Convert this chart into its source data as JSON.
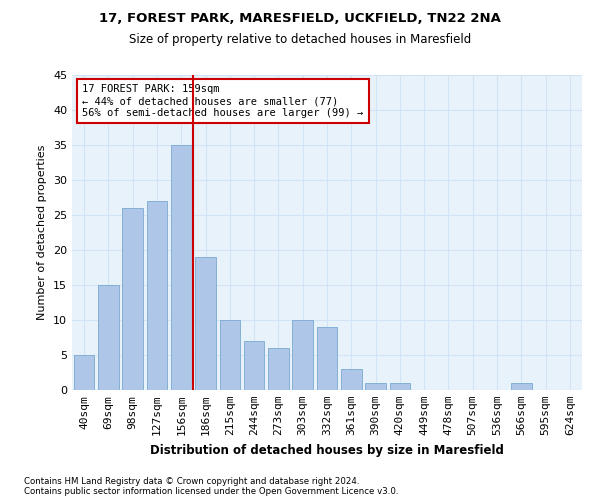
{
  "title": "17, FOREST PARK, MARESFIELD, UCKFIELD, TN22 2NA",
  "subtitle": "Size of property relative to detached houses in Maresfield",
  "xlabel": "Distribution of detached houses by size in Maresfield",
  "ylabel": "Number of detached properties",
  "bar_labels": [
    "40sqm",
    "69sqm",
    "98sqm",
    "127sqm",
    "156sqm",
    "186sqm",
    "215sqm",
    "244sqm",
    "273sqm",
    "303sqm",
    "332sqm",
    "361sqm",
    "390sqm",
    "420sqm",
    "449sqm",
    "478sqm",
    "507sqm",
    "536sqm",
    "566sqm",
    "595sqm",
    "624sqm"
  ],
  "bar_values": [
    5,
    15,
    26,
    27,
    35,
    19,
    10,
    7,
    6,
    10,
    9,
    3,
    1,
    1,
    0,
    0,
    0,
    0,
    1,
    0,
    0
  ],
  "bar_color": "#aec6e8",
  "bar_edgecolor": "#7aa8d0",
  "grid_color": "#d0e4f5",
  "background_color": "#e8f2fb",
  "vline_color": "#cc0000",
  "vline_index": 4,
  "annotation_text": "17 FOREST PARK: 159sqm\n← 44% of detached houses are smaller (77)\n56% of semi-detached houses are larger (99) →",
  "annotation_box_color": "#cc0000",
  "ylim": [
    0,
    45
  ],
  "yticks": [
    0,
    5,
    10,
    15,
    20,
    25,
    30,
    35,
    40,
    45
  ],
  "footer1": "Contains HM Land Registry data © Crown copyright and database right 2024.",
  "footer2": "Contains public sector information licensed under the Open Government Licence v3.0."
}
